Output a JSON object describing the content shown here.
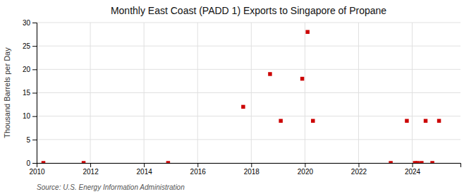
{
  "chart_data": {
    "type": "scatter",
    "title": "Monthly East Coast (PADD 1) Exports to Singapore of Propane",
    "ylabel": "Thousand Barrels per Day",
    "source": "Source: U.S. Energy Information Administration",
    "x": [
      2010.25,
      2011.75,
      2014.9,
      2017.7,
      2018.7,
      2019.1,
      2019.9,
      2020.1,
      2020.3,
      2023.2,
      2023.8,
      2024.1,
      2024.2,
      2024.35,
      2024.5,
      2024.75,
      2025.0
    ],
    "values": [
      0.0,
      0.0,
      0.0,
      12.0,
      19.0,
      9.0,
      18.0,
      28.0,
      9.0,
      0.0,
      9.0,
      0.0,
      0.0,
      0.0,
      9.0,
      0.0,
      9.0
    ],
    "color": "#cc0000",
    "marker": "square",
    "xlim": [
      2010,
      2025.8
    ],
    "ylim": [
      0,
      30
    ],
    "xticks": [
      2010,
      2012,
      2014,
      2016,
      2018,
      2020,
      2022,
      2024
    ],
    "yticks": [
      0,
      5,
      10,
      15,
      20,
      25,
      30
    ],
    "grid": true
  }
}
